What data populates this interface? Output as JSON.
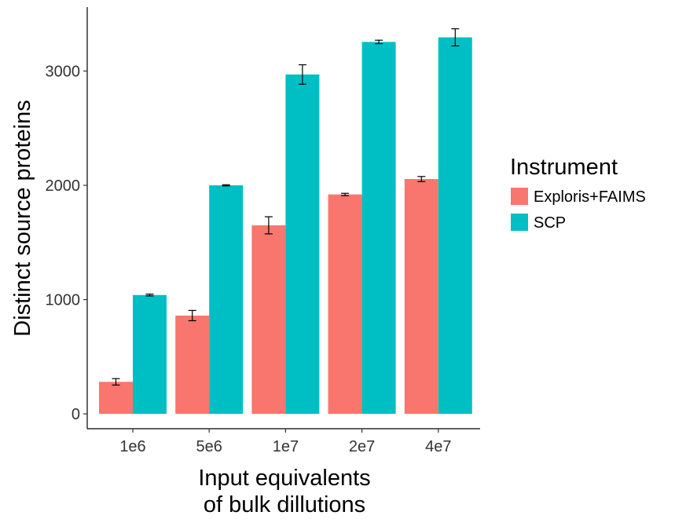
{
  "chart_data": {
    "type": "bar",
    "title": "",
    "xlabel": [
      "Input equivalents",
      "of bulk dillutions"
    ],
    "ylabel": "Distinct source proteins",
    "categories": [
      "1e6",
      "5e6",
      "1e7",
      "2e7",
      "4e7"
    ],
    "ylim": [
      -130,
      3560
    ],
    "yticks": [
      0,
      1000,
      2000,
      3000
    ],
    "ytick_labels": [
      "0",
      "1000",
      "2000",
      "3000"
    ],
    "grid": false,
    "legend": {
      "title": "Instrument",
      "position": "right"
    },
    "series": [
      {
        "name": "Exploris+FAIMS",
        "color": "#F8766D",
        "values": [
          280,
          860,
          1650,
          1920,
          2055
        ],
        "errors": [
          28,
          45,
          75,
          10,
          22
        ]
      },
      {
        "name": "SCP",
        "color": "#00BFC4",
        "values": [
          1040,
          2000,
          2970,
          3255,
          3295
        ],
        "errors": [
          8,
          5,
          85,
          15,
          75
        ]
      }
    ]
  }
}
